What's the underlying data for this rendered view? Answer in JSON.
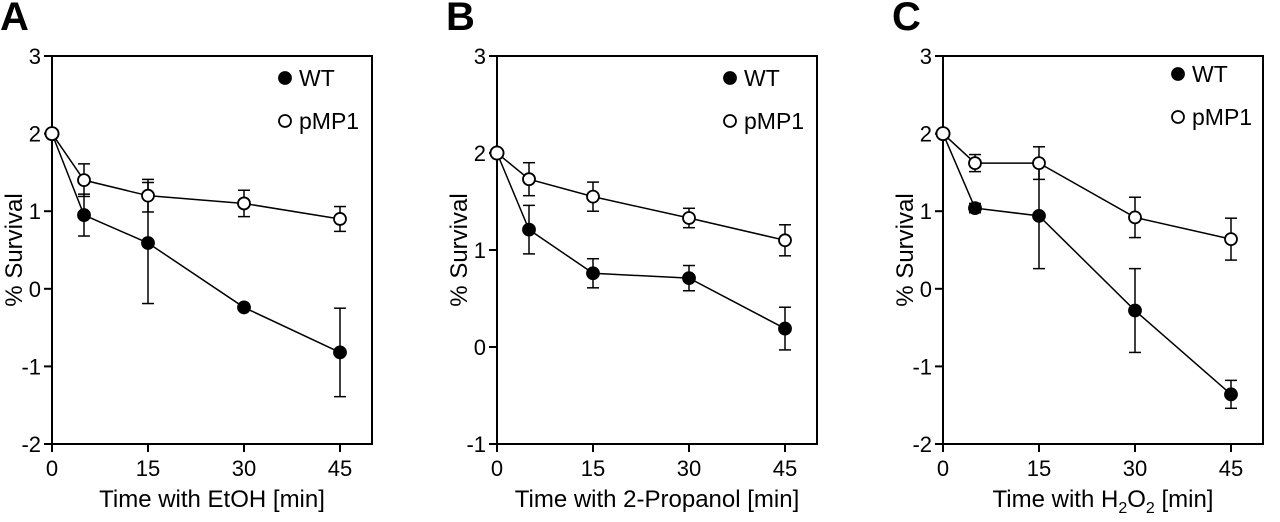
{
  "chart_data": [
    {
      "type": "line",
      "panel": "A",
      "xlabel": "Time with EtOH [min]",
      "xlabel_sub": "",
      "xlabel_tail": "",
      "ylabel": "% Survival",
      "xlim": [
        0,
        50
      ],
      "ylim": [
        -2,
        3
      ],
      "xticks": [
        0,
        15,
        30,
        45
      ],
      "yticks": [
        -2,
        -1,
        0,
        1,
        2,
        3
      ],
      "series": [
        {
          "name": "WT",
          "marker": "filled",
          "x": [
            0,
            5,
            15,
            30,
            45
          ],
          "y": [
            2.0,
            0.95,
            0.59,
            -0.24,
            -0.82
          ],
          "err": [
            0,
            0.27,
            0.78,
            0,
            0.57
          ]
        },
        {
          "name": "pMP1",
          "marker": "open",
          "x": [
            0,
            5,
            15,
            30,
            45
          ],
          "y": [
            2.0,
            1.4,
            1.2,
            1.1,
            0.9
          ],
          "err": [
            0,
            0.21,
            0.21,
            0.17,
            0.16
          ]
        }
      ]
    },
    {
      "type": "line",
      "panel": "B",
      "xlabel": "Time with 2-Propanol [min]",
      "xlabel_sub": "",
      "xlabel_tail": "",
      "ylabel": "% Survival",
      "xlim": [
        0,
        50
      ],
      "ylim": [
        -1,
        3
      ],
      "xticks": [
        0,
        15,
        30,
        45
      ],
      "yticks": [
        -1,
        0,
        1,
        2,
        3
      ],
      "series": [
        {
          "name": "WT",
          "marker": "filled",
          "x": [
            0,
            5,
            15,
            30,
            45
          ],
          "y": [
            2.0,
            1.21,
            0.76,
            0.71,
            0.19
          ],
          "err": [
            0,
            0.25,
            0.15,
            0.13,
            0.22
          ]
        },
        {
          "name": "pMP1",
          "marker": "open",
          "x": [
            0,
            5,
            15,
            30,
            45
          ],
          "y": [
            2.0,
            1.73,
            1.55,
            1.33,
            1.1
          ],
          "err": [
            0,
            0.17,
            0.15,
            0.1,
            0.16
          ]
        }
      ]
    },
    {
      "type": "line",
      "panel": "C",
      "xlabel": "Time with H",
      "xlabel_sub": "2",
      "xlabel_mid": "O",
      "xlabel_sub2": "2",
      "xlabel_tail": " [min]",
      "ylabel": "% Survival",
      "xlim": [
        0,
        50
      ],
      "ylim": [
        -2,
        3
      ],
      "xticks": [
        0,
        15,
        30,
        45
      ],
      "yticks": [
        -2,
        -1,
        0,
        1,
        2,
        3
      ],
      "series": [
        {
          "name": "WT",
          "marker": "filled",
          "x": [
            0,
            5,
            15,
            30,
            45
          ],
          "y": [
            2.0,
            1.04,
            0.94,
            -0.28,
            -1.36
          ],
          "err": [
            0,
            0.06,
            0.68,
            0.54,
            0.18
          ]
        },
        {
          "name": "pMP1",
          "marker": "open",
          "x": [
            0,
            5,
            15,
            30,
            45
          ],
          "y": [
            2.0,
            1.62,
            1.62,
            0.92,
            0.64
          ],
          "err": [
            0,
            0.11,
            0.21,
            0.26,
            0.27
          ]
        }
      ]
    }
  ]
}
